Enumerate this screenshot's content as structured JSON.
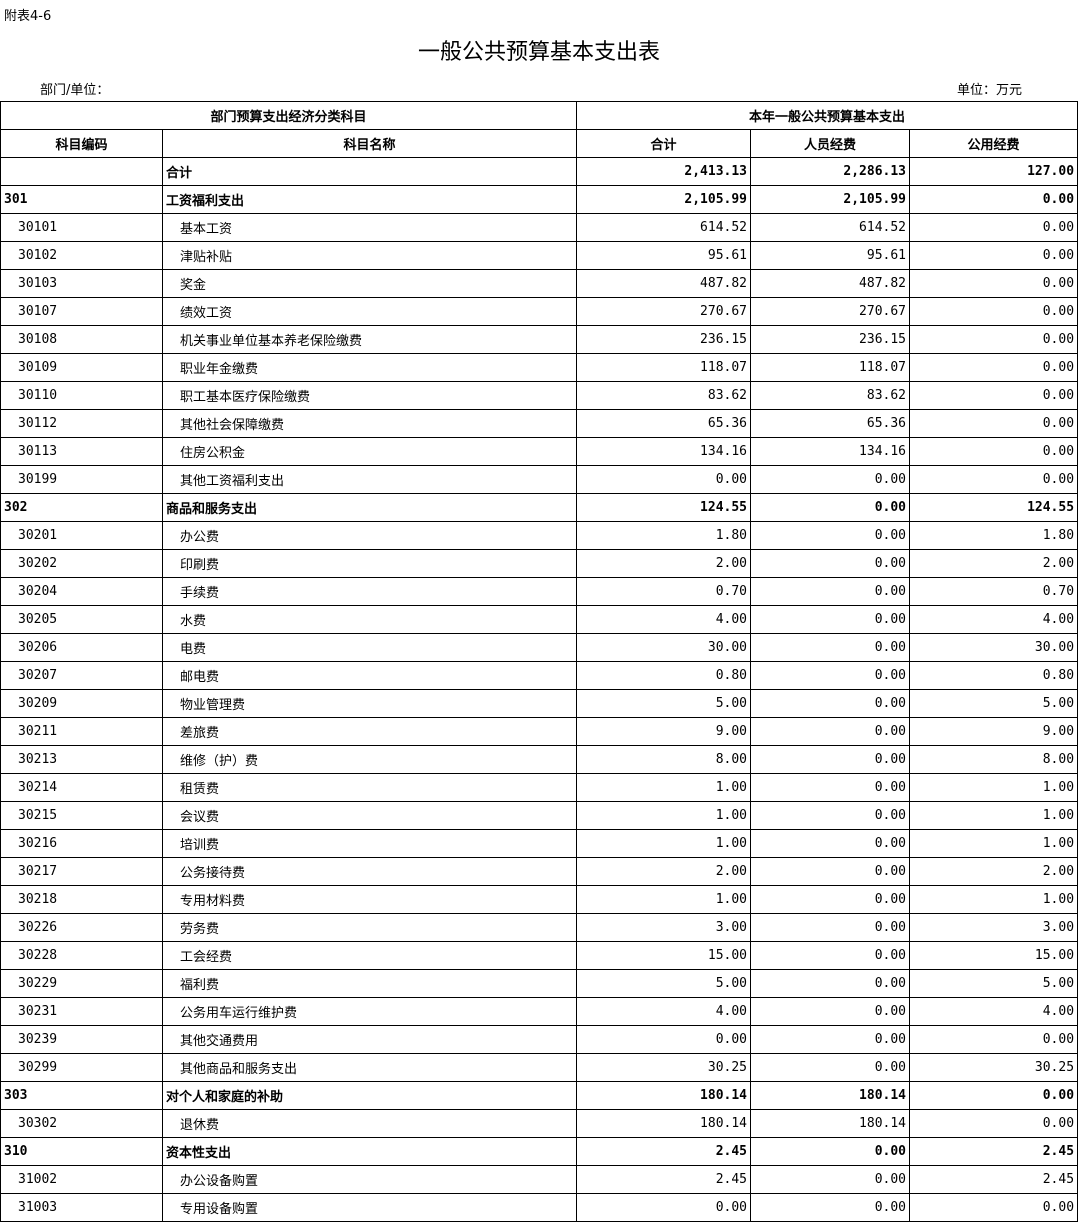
{
  "annex": "附表4-6",
  "title": "一般公共预算基本支出表",
  "dept_label": "部门/单位：",
  "unit_label": "单位：万元",
  "header": {
    "group_left": "部门预算支出经济分类科目",
    "group_right": "本年一般公共预算基本支出",
    "code": "科目编码",
    "name": "科目名称",
    "total": "合计",
    "personnel": "人员经费",
    "public": "公用经费"
  },
  "rows": [
    {
      "code": "",
      "name": "合计",
      "total": "2,413.13",
      "personnel": "2,286.13",
      "public": "127.00",
      "level": "top"
    },
    {
      "code": "301",
      "name": "工资福利支出",
      "total": "2,105.99",
      "personnel": "2,105.99",
      "public": "0.00",
      "level": "top"
    },
    {
      "code": "30101",
      "name": "基本工资",
      "total": "614.52",
      "personnel": "614.52",
      "public": "0.00",
      "level": "sub"
    },
    {
      "code": "30102",
      "name": "津贴补贴",
      "total": "95.61",
      "personnel": "95.61",
      "public": "0.00",
      "level": "sub"
    },
    {
      "code": "30103",
      "name": "奖金",
      "total": "487.82",
      "personnel": "487.82",
      "public": "0.00",
      "level": "sub"
    },
    {
      "code": "30107",
      "name": "绩效工资",
      "total": "270.67",
      "personnel": "270.67",
      "public": "0.00",
      "level": "sub"
    },
    {
      "code": "30108",
      "name": "机关事业单位基本养老保险缴费",
      "total": "236.15",
      "personnel": "236.15",
      "public": "0.00",
      "level": "sub"
    },
    {
      "code": "30109",
      "name": "职业年金缴费",
      "total": "118.07",
      "personnel": "118.07",
      "public": "0.00",
      "level": "sub"
    },
    {
      "code": "30110",
      "name": "职工基本医疗保险缴费",
      "total": "83.62",
      "personnel": "83.62",
      "public": "0.00",
      "level": "sub"
    },
    {
      "code": "30112",
      "name": "其他社会保障缴费",
      "total": "65.36",
      "personnel": "65.36",
      "public": "0.00",
      "level": "sub"
    },
    {
      "code": "30113",
      "name": "住房公积金",
      "total": "134.16",
      "personnel": "134.16",
      "public": "0.00",
      "level": "sub"
    },
    {
      "code": "30199",
      "name": "其他工资福利支出",
      "total": "0.00",
      "personnel": "0.00",
      "public": "0.00",
      "level": "sub"
    },
    {
      "code": "302",
      "name": "商品和服务支出",
      "total": "124.55",
      "personnel": "0.00",
      "public": "124.55",
      "level": "top"
    },
    {
      "code": "30201",
      "name": "办公费",
      "total": "1.80",
      "personnel": "0.00",
      "public": "1.80",
      "level": "sub"
    },
    {
      "code": "30202",
      "name": "印刷费",
      "total": "2.00",
      "personnel": "0.00",
      "public": "2.00",
      "level": "sub"
    },
    {
      "code": "30204",
      "name": "手续费",
      "total": "0.70",
      "personnel": "0.00",
      "public": "0.70",
      "level": "sub"
    },
    {
      "code": "30205",
      "name": "水费",
      "total": "4.00",
      "personnel": "0.00",
      "public": "4.00",
      "level": "sub"
    },
    {
      "code": "30206",
      "name": "电费",
      "total": "30.00",
      "personnel": "0.00",
      "public": "30.00",
      "level": "sub"
    },
    {
      "code": "30207",
      "name": "邮电费",
      "total": "0.80",
      "personnel": "0.00",
      "public": "0.80",
      "level": "sub"
    },
    {
      "code": "30209",
      "name": "物业管理费",
      "total": "5.00",
      "personnel": "0.00",
      "public": "5.00",
      "level": "sub"
    },
    {
      "code": "30211",
      "name": "差旅费",
      "total": "9.00",
      "personnel": "0.00",
      "public": "9.00",
      "level": "sub"
    },
    {
      "code": "30213",
      "name": "维修（护）费",
      "total": "8.00",
      "personnel": "0.00",
      "public": "8.00",
      "level": "sub"
    },
    {
      "code": "30214",
      "name": "租赁费",
      "total": "1.00",
      "personnel": "0.00",
      "public": "1.00",
      "level": "sub"
    },
    {
      "code": "30215",
      "name": "会议费",
      "total": "1.00",
      "personnel": "0.00",
      "public": "1.00",
      "level": "sub"
    },
    {
      "code": "30216",
      "name": "培训费",
      "total": "1.00",
      "personnel": "0.00",
      "public": "1.00",
      "level": "sub"
    },
    {
      "code": "30217",
      "name": "公务接待费",
      "total": "2.00",
      "personnel": "0.00",
      "public": "2.00",
      "level": "sub"
    },
    {
      "code": "30218",
      "name": "专用材料费",
      "total": "1.00",
      "personnel": "0.00",
      "public": "1.00",
      "level": "sub"
    },
    {
      "code": "30226",
      "name": "劳务费",
      "total": "3.00",
      "personnel": "0.00",
      "public": "3.00",
      "level": "sub"
    },
    {
      "code": "30228",
      "name": "工会经费",
      "total": "15.00",
      "personnel": "0.00",
      "public": "15.00",
      "level": "sub"
    },
    {
      "code": "30229",
      "name": "福利费",
      "total": "5.00",
      "personnel": "0.00",
      "public": "5.00",
      "level": "sub"
    },
    {
      "code": "30231",
      "name": "公务用车运行维护费",
      "total": "4.00",
      "personnel": "0.00",
      "public": "4.00",
      "level": "sub"
    },
    {
      "code": "30239",
      "name": "其他交通费用",
      "total": "0.00",
      "personnel": "0.00",
      "public": "0.00",
      "level": "sub"
    },
    {
      "code": "30299",
      "name": "其他商品和服务支出",
      "total": "30.25",
      "personnel": "0.00",
      "public": "30.25",
      "level": "sub"
    },
    {
      "code": "303",
      "name": "对个人和家庭的补助",
      "total": "180.14",
      "personnel": "180.14",
      "public": "0.00",
      "level": "top"
    },
    {
      "code": "30302",
      "name": "退休费",
      "total": "180.14",
      "personnel": "180.14",
      "public": "0.00",
      "level": "sub"
    },
    {
      "code": "310",
      "name": "资本性支出",
      "total": "2.45",
      "personnel": "0.00",
      "public": "2.45",
      "level": "top"
    },
    {
      "code": "31002",
      "name": "办公设备购置",
      "total": "2.45",
      "personnel": "0.00",
      "public": "2.45",
      "level": "sub"
    },
    {
      "code": "31003",
      "name": "专用设备购置",
      "total": "0.00",
      "personnel": "0.00",
      "public": "0.00",
      "level": "sub"
    }
  ]
}
